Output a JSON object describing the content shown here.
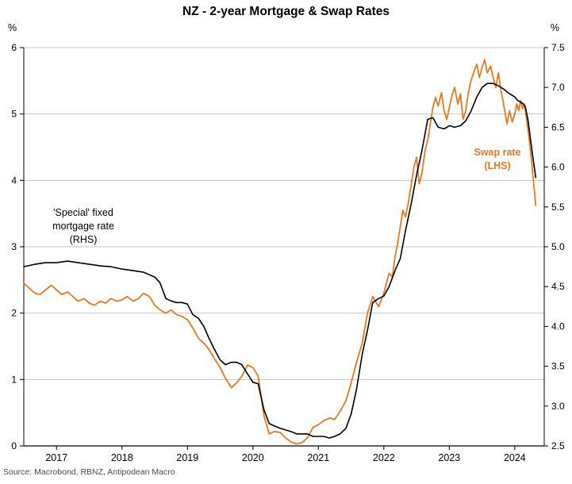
{
  "chart_data": {
    "type": "line",
    "title": "NZ - 2-year Mortgage & Swap Rates",
    "source": "Source: Macrobond, RBNZ, Antipodean Macro",
    "grid": "horizontal",
    "colors": {
      "gridline": "#C6C6C6",
      "axis": "#000000",
      "source_text": "#4a4a4a",
      "swap_orange": "#E87722",
      "mortgage_black": "#000000"
    },
    "left_axis": {
      "unit": "%",
      "range": [
        0,
        6
      ],
      "ticks": [
        0,
        1,
        2,
        3,
        4,
        5,
        6
      ],
      "tick_labels": [
        "0",
        "1",
        "2",
        "3",
        "4",
        "5",
        "6"
      ]
    },
    "right_axis": {
      "unit": "%",
      "range": [
        2.5,
        7.5
      ],
      "ticks": [
        2.5,
        3.0,
        3.5,
        4.0,
        4.5,
        5.0,
        5.5,
        6.0,
        6.5,
        7.0,
        7.5
      ],
      "tick_labels": [
        "2.5",
        "3.0",
        "3.5",
        "4.0",
        "4.5",
        "5.0",
        "5.5",
        "6.0",
        "6.5",
        "7.0",
        "7.5"
      ]
    },
    "x_axis": {
      "range": [
        2016.5,
        2024.45
      ],
      "ticks": [
        2017,
        2018,
        2019,
        2020,
        2021,
        2022,
        2023,
        2024
      ],
      "tick_labels": [
        "2017",
        "2018",
        "2019",
        "2020",
        "2021",
        "2022",
        "2023",
        "2024"
      ]
    },
    "annotations": [
      {
        "series": "mortgage",
        "color": "#000000",
        "line1": "'Special' fixed",
        "line2": "mortgage rate",
        "line3": "(RHS)"
      },
      {
        "series": "swap",
        "color": "#E87722",
        "line1": "Swap rate",
        "line2": "(LHS)"
      }
    ],
    "series": [
      {
        "name": "Swap rate (LHS)",
        "axis": "left",
        "color": "#E87722",
        "x": [
          2016.5,
          2016.58,
          2016.67,
          2016.75,
          2016.83,
          2016.92,
          2017.0,
          2017.08,
          2017.17,
          2017.25,
          2017.33,
          2017.42,
          2017.5,
          2017.58,
          2017.67,
          2017.75,
          2017.83,
          2017.92,
          2018.0,
          2018.08,
          2018.17,
          2018.25,
          2018.33,
          2018.42,
          2018.5,
          2018.58,
          2018.67,
          2018.75,
          2018.83,
          2018.92,
          2019.0,
          2019.08,
          2019.17,
          2019.25,
          2019.33,
          2019.42,
          2019.5,
          2019.58,
          2019.67,
          2019.75,
          2019.83,
          2019.92,
          2020.0,
          2020.08,
          2020.17,
          2020.25,
          2020.33,
          2020.42,
          2020.5,
          2020.58,
          2020.67,
          2020.75,
          2020.83,
          2020.92,
          2021.0,
          2021.08,
          2021.17,
          2021.25,
          2021.33,
          2021.42,
          2021.5,
          2021.58,
          2021.67,
          2021.75,
          2021.83,
          2021.92,
          2022.0,
          2022.04,
          2022.08,
          2022.13,
          2022.17,
          2022.21,
          2022.25,
          2022.29,
          2022.33,
          2022.38,
          2022.42,
          2022.46,
          2022.5,
          2022.54,
          2022.58,
          2022.63,
          2022.67,
          2022.71,
          2022.75,
          2022.79,
          2022.83,
          2022.88,
          2022.92,
          2022.96,
          2023.0,
          2023.04,
          2023.08,
          2023.13,
          2023.17,
          2023.21,
          2023.25,
          2023.29,
          2023.33,
          2023.38,
          2023.42,
          2023.46,
          2023.5,
          2023.54,
          2023.58,
          2023.63,
          2023.67,
          2023.71,
          2023.75,
          2023.79,
          2023.83,
          2023.88,
          2023.92,
          2023.96,
          2024.0,
          2024.03,
          2024.06,
          2024.09,
          2024.12,
          2024.15,
          2024.18,
          2024.21,
          2024.24,
          2024.27,
          2024.3,
          2024.32
        ],
        "y": [
          2.45,
          2.38,
          2.3,
          2.28,
          2.35,
          2.42,
          2.35,
          2.28,
          2.32,
          2.25,
          2.18,
          2.22,
          2.15,
          2.12,
          2.18,
          2.15,
          2.22,
          2.18,
          2.2,
          2.25,
          2.18,
          2.22,
          2.3,
          2.25,
          2.12,
          2.05,
          2.0,
          2.05,
          1.98,
          1.95,
          1.9,
          1.78,
          1.62,
          1.55,
          1.45,
          1.3,
          1.18,
          1.02,
          0.88,
          0.95,
          1.05,
          1.22,
          1.18,
          1.05,
          0.45,
          0.18,
          0.22,
          0.2,
          0.12,
          0.06,
          0.03,
          0.05,
          0.12,
          0.28,
          0.32,
          0.38,
          0.42,
          0.4,
          0.52,
          0.68,
          0.95,
          1.25,
          1.55,
          2.0,
          2.25,
          2.1,
          2.3,
          2.45,
          2.6,
          2.55,
          2.85,
          3.05,
          3.3,
          3.55,
          3.45,
          3.7,
          3.95,
          4.2,
          4.35,
          3.95,
          4.1,
          4.45,
          4.6,
          4.85,
          5.1,
          5.25,
          5.12,
          5.32,
          5.05,
          4.92,
          5.1,
          5.28,
          5.4,
          5.15,
          5.3,
          4.92,
          5.05,
          5.32,
          5.5,
          5.65,
          5.75,
          5.55,
          5.7,
          5.82,
          5.62,
          5.72,
          5.55,
          5.4,
          5.62,
          5.35,
          5.15,
          4.85,
          5.05,
          4.88,
          5.0,
          5.15,
          5.05,
          5.2,
          5.08,
          5.15,
          4.92,
          4.7,
          4.45,
          4.15,
          3.85,
          3.62
        ]
      },
      {
        "name": "'Special' fixed mortgage rate (RHS)",
        "axis": "right",
        "color": "#000000",
        "x": [
          2016.5,
          2016.67,
          2016.83,
          2017.0,
          2017.17,
          2017.33,
          2017.5,
          2017.67,
          2017.83,
          2018.0,
          2018.17,
          2018.33,
          2018.5,
          2018.58,
          2018.67,
          2018.75,
          2018.83,
          2018.92,
          2019.0,
          2019.08,
          2019.17,
          2019.25,
          2019.33,
          2019.42,
          2019.5,
          2019.58,
          2019.67,
          2019.75,
          2019.83,
          2019.92,
          2020.0,
          2020.08,
          2020.17,
          2020.25,
          2020.33,
          2020.42,
          2020.5,
          2020.58,
          2020.67,
          2020.75,
          2020.83,
          2020.92,
          2021.0,
          2021.08,
          2021.17,
          2021.25,
          2021.33,
          2021.42,
          2021.5,
          2021.58,
          2021.67,
          2021.75,
          2021.83,
          2021.92,
          2022.0,
          2022.08,
          2022.17,
          2022.25,
          2022.33,
          2022.42,
          2022.5,
          2022.58,
          2022.67,
          2022.75,
          2022.83,
          2022.92,
          2023.0,
          2023.08,
          2023.17,
          2023.25,
          2023.33,
          2023.42,
          2023.5,
          2023.58,
          2023.67,
          2023.75,
          2023.83,
          2023.92,
          2024.0,
          2024.04,
          2024.08,
          2024.12,
          2024.16,
          2024.2,
          2024.24,
          2024.28,
          2024.32
        ],
        "y": [
          4.75,
          4.78,
          4.8,
          4.8,
          4.82,
          4.8,
          4.78,
          4.76,
          4.75,
          4.72,
          4.7,
          4.68,
          4.62,
          4.55,
          4.35,
          4.32,
          4.3,
          4.3,
          4.28,
          4.15,
          4.1,
          4.0,
          3.85,
          3.7,
          3.58,
          3.52,
          3.55,
          3.55,
          3.52,
          3.4,
          3.3,
          3.28,
          2.95,
          2.78,
          2.75,
          2.72,
          2.7,
          2.68,
          2.65,
          2.65,
          2.65,
          2.62,
          2.62,
          2.62,
          2.6,
          2.62,
          2.65,
          2.72,
          2.9,
          3.2,
          3.65,
          3.95,
          4.3,
          4.35,
          4.38,
          4.5,
          4.7,
          4.85,
          5.2,
          5.55,
          5.9,
          6.2,
          6.6,
          6.62,
          6.5,
          6.48,
          6.52,
          6.5,
          6.52,
          6.58,
          6.7,
          6.88,
          7.0,
          7.05,
          7.05,
          7.02,
          6.98,
          6.92,
          6.88,
          6.84,
          6.82,
          6.8,
          6.76,
          6.6,
          6.35,
          6.1,
          5.87
        ]
      }
    ]
  }
}
